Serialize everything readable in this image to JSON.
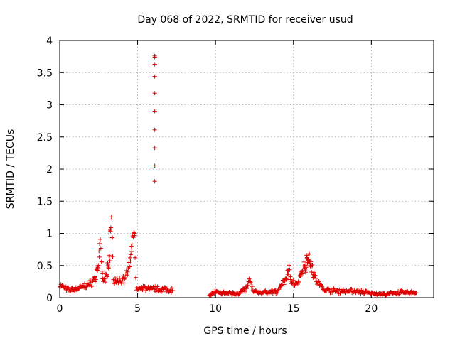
{
  "chart_data": {
    "type": "scatter",
    "title": "Day 068 of 2022, SRMTID for receiver usud",
    "xlabel": "GPS time / hours",
    "ylabel": "SRMTID / TECUs",
    "xlim": [
      0,
      24
    ],
    "ylim": [
      0,
      4
    ],
    "xticks": [
      0,
      5,
      10,
      15,
      20
    ],
    "xtick_labels": [
      "0",
      "5",
      "10",
      "15",
      "20"
    ],
    "yticks": [
      0,
      0.5,
      1,
      1.5,
      2,
      2.5,
      3,
      3.5,
      4
    ],
    "ytick_labels": [
      "0",
      "0.5",
      "1",
      "1.5",
      "2",
      "2.5",
      "3",
      "3.5",
      "4"
    ],
    "grid": true,
    "marker": "plus",
    "color": "#e00000",
    "segments": [
      {
        "x_start": 0.0,
        "x_end": 7.3,
        "step": 0.04,
        "profile": [
          [
            0,
            0.2
          ],
          [
            0.5,
            0.12
          ],
          [
            1.0,
            0.13
          ],
          [
            1.5,
            0.17
          ],
          [
            2.0,
            0.22
          ],
          [
            2.3,
            0.3
          ],
          [
            2.45,
            0.55
          ],
          [
            2.6,
            0.8
          ],
          [
            2.75,
            0.25
          ],
          [
            3.0,
            0.3
          ],
          [
            3.15,
            0.6
          ],
          [
            3.3,
            1.22
          ],
          [
            3.45,
            0.3
          ],
          [
            3.7,
            0.25
          ],
          [
            4.0,
            0.28
          ],
          [
            4.3,
            0.35
          ],
          [
            4.55,
            0.55
          ],
          [
            4.7,
            0.9
          ],
          [
            4.8,
            1.03
          ],
          [
            4.9,
            0.15
          ],
          [
            5.5,
            0.15
          ],
          [
            6.0,
            0.14
          ],
          [
            6.5,
            0.13
          ],
          [
            7.3,
            0.12
          ]
        ]
      },
      {
        "x_start": 9.6,
        "x_end": 22.9,
        "step": 0.04,
        "profile": [
          [
            9.6,
            0.02
          ],
          [
            9.8,
            0.08
          ],
          [
            10.5,
            0.07
          ],
          [
            11.5,
            0.07
          ],
          [
            12.0,
            0.15
          ],
          [
            12.2,
            0.28
          ],
          [
            12.4,
            0.1
          ],
          [
            13.0,
            0.08
          ],
          [
            14.0,
            0.1
          ],
          [
            14.5,
            0.3
          ],
          [
            14.7,
            0.45
          ],
          [
            14.9,
            0.25
          ],
          [
            15.3,
            0.2
          ],
          [
            15.6,
            0.45
          ],
          [
            15.8,
            0.55
          ],
          [
            16.0,
            0.68
          ],
          [
            16.2,
            0.45
          ],
          [
            16.5,
            0.25
          ],
          [
            17.0,
            0.12
          ],
          [
            18.0,
            0.1
          ],
          [
            19.0,
            0.1
          ],
          [
            20.0,
            0.07
          ],
          [
            21.0,
            0.05
          ],
          [
            21.5,
            0.08
          ],
          [
            22.9,
            0.08
          ]
        ]
      }
    ],
    "spike_points": [
      {
        "x": 6.1,
        "y": 3.76
      },
      {
        "x": 6.1,
        "y": 3.74
      },
      {
        "x": 6.1,
        "y": 3.63
      },
      {
        "x": 6.1,
        "y": 3.44
      },
      {
        "x": 6.1,
        "y": 3.18
      },
      {
        "x": 6.1,
        "y": 2.9
      },
      {
        "x": 6.1,
        "y": 2.61
      },
      {
        "x": 6.1,
        "y": 2.33
      },
      {
        "x": 6.1,
        "y": 2.05
      },
      {
        "x": 6.1,
        "y": 1.81
      }
    ]
  }
}
